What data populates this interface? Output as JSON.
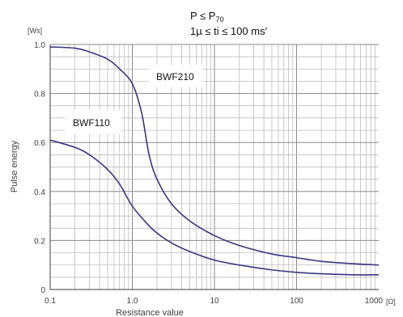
{
  "chart_data": {
    "type": "line",
    "condition_lines": [
      {
        "main": "P ≤  P",
        "sub": "70"
      },
      {
        "main": "1µ ≤ ti ≤ 100 ms'"
      }
    ],
    "xlabel": "Resistance value",
    "ylabel": "Pulse energy",
    "x_unit": "[Ω]",
    "y_unit": "[Ws]",
    "x_scale": "log",
    "xlim": [
      0.1,
      1000
    ],
    "ylim": [
      0,
      1.0
    ],
    "x_ticks": [
      {
        "value": 0.1,
        "label": "0.1"
      },
      {
        "value": 1,
        "label": "1.0"
      },
      {
        "value": 10,
        "label": "10"
      },
      {
        "value": 100,
        "label": "100"
      },
      {
        "value": 1000,
        "label": "1000"
      }
    ],
    "y_ticks": [
      {
        "value": 0,
        "label": "0"
      },
      {
        "value": 0.2,
        "label": "0.2"
      },
      {
        "value": 0.4,
        "label": "0.4"
      },
      {
        "value": 0.6,
        "label": "0.6"
      },
      {
        "value": 0.8,
        "label": "0.8"
      },
      {
        "value": 1.0,
        "label": "1.0"
      }
    ],
    "grid": true,
    "line_color": "#3a3580",
    "series": [
      {
        "name": "BWF210",
        "x": [
          0.1,
          0.2,
          0.3,
          0.5,
          0.7,
          1.0,
          1.3,
          1.6,
          2,
          3,
          5,
          10,
          20,
          50,
          100,
          200,
          500,
          1000
        ],
        "y": [
          0.99,
          0.985,
          0.97,
          0.94,
          0.9,
          0.84,
          0.72,
          0.55,
          0.45,
          0.35,
          0.28,
          0.22,
          0.18,
          0.145,
          0.13,
          0.115,
          0.105,
          0.1
        ]
      },
      {
        "name": "BWF110",
        "x": [
          0.1,
          0.2,
          0.3,
          0.5,
          0.7,
          1.0,
          1.5,
          2,
          3,
          5,
          10,
          20,
          50,
          100,
          200,
          500,
          1000
        ],
        "y": [
          0.61,
          0.58,
          0.55,
          0.49,
          0.43,
          0.34,
          0.27,
          0.23,
          0.19,
          0.155,
          0.12,
          0.1,
          0.08,
          0.07,
          0.064,
          0.06,
          0.06
        ]
      }
    ]
  }
}
